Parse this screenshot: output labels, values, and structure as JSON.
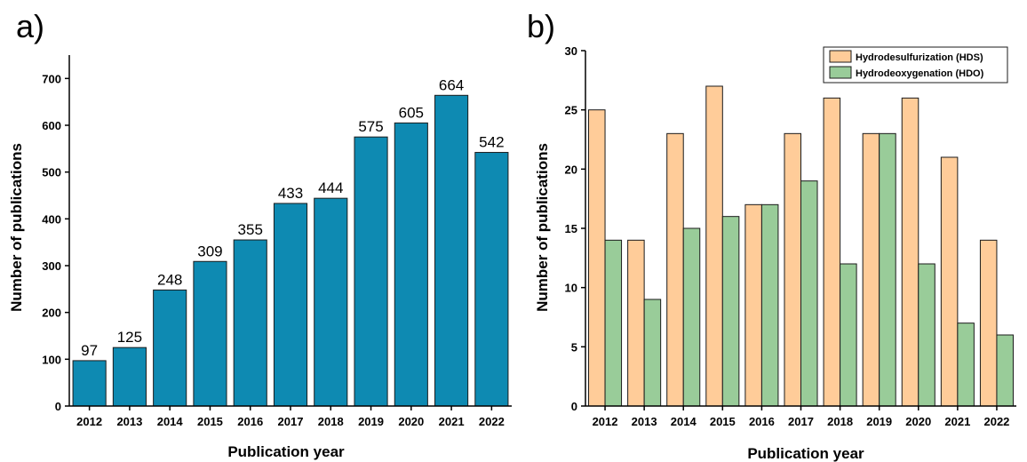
{
  "chart_data": [
    {
      "type": "bar",
      "panel_label": "a)",
      "xlabel": "Publication year",
      "ylabel": "Number of publications",
      "categories": [
        "2012",
        "2013",
        "2014",
        "2015",
        "2016",
        "2017",
        "2018",
        "2019",
        "2020",
        "2021",
        "2022"
      ],
      "values": [
        97,
        125,
        248,
        309,
        355,
        433,
        444,
        575,
        605,
        664,
        542
      ],
      "data_labels": [
        "97",
        "125",
        "248",
        "309",
        "355",
        "433",
        "444",
        "575",
        "605",
        "664",
        "542"
      ],
      "ylim": [
        0,
        750
      ],
      "yticks": [
        0,
        100,
        200,
        300,
        400,
        500,
        600,
        700
      ],
      "ytick_labels": [
        "0",
        "100",
        "200",
        "300",
        "400",
        "500",
        "600",
        "700"
      ],
      "grid": false,
      "colors": {
        "bar": "#0e8ab2",
        "edge": "#1b1b1b"
      }
    },
    {
      "type": "bar",
      "panel_label": "b)",
      "xlabel": "Publication year",
      "ylabel": "Number of publications",
      "categories": [
        "2012",
        "2013",
        "2014",
        "2015",
        "2016",
        "2017",
        "2018",
        "2019",
        "2020",
        "2021",
        "2022"
      ],
      "series": [
        {
          "name": "Hydrodesulfurization (HDS)",
          "values": [
            25,
            14,
            23,
            27,
            17,
            23,
            26,
            23,
            26,
            21,
            14
          ],
          "color": "#ffcc99"
        },
        {
          "name": "Hydrodeoxygenation (HDO)",
          "values": [
            14,
            9,
            15,
            16,
            17,
            19,
            12,
            23,
            12,
            7,
            6
          ],
          "color": "#99cc99"
        }
      ],
      "ylim": [
        0,
        30
      ],
      "yticks": [
        0,
        5,
        10,
        15,
        20,
        25,
        30
      ],
      "ytick_labels": [
        "0",
        "5",
        "10",
        "15",
        "20",
        "25",
        "30"
      ],
      "grid": false,
      "legend_position": "top-right",
      "colors": {
        "edge": "#1b1b1b"
      }
    }
  ]
}
